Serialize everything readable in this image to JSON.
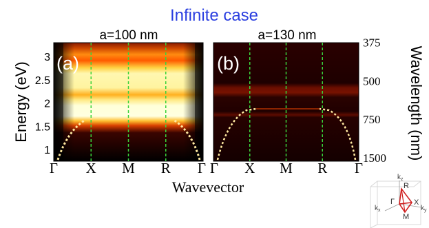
{
  "figure": {
    "title": "Infinite case",
    "title_color": "#2b3fe0",
    "xlabel": "Wavevector",
    "ylabel_left": "Energy (eV)",
    "ylabel_right": "Wavelength (nm)"
  },
  "chart_data": [
    {
      "type": "heatmap",
      "panel": "(a)",
      "subtitle": "a=100 nm",
      "x_ticks": [
        "Γ",
        "X",
        "M",
        "R",
        "Γ"
      ],
      "y_ticks": [
        "1",
        "1.5",
        "2",
        "2.5",
        "3"
      ],
      "ylim": [
        0.75,
        3.3
      ],
      "xlabel": "Wavevector",
      "ylabel": "Energy (eV)",
      "grid": "dashed green verticals at X, M, R",
      "colormap": "hot",
      "bands": [
        {
          "from_eV": 1.65,
          "to_eV": 2.1,
          "level": "high"
        },
        {
          "from_eV": 2.3,
          "to_eV": 2.85,
          "level": "high"
        },
        {
          "from_eV": 2.9,
          "to_eV": 3.3,
          "level": "medium"
        }
      ]
    },
    {
      "type": "heatmap",
      "panel": "(b)",
      "subtitle": "a=130 nm",
      "x_ticks": [
        "Γ",
        "X",
        "M",
        "R",
        "Γ"
      ],
      "y_ticks_right": [
        "375",
        "500",
        "750",
        "1500"
      ],
      "ylim": [
        0.75,
        3.3
      ],
      "xlabel": "Wavevector",
      "ylabel": "Wavelength (nm)",
      "grid": "dashed green verticals at X, M, R",
      "colormap": "hot",
      "bands": [
        {
          "from_eV": 2.45,
          "to_eV": 2.6,
          "level": "low"
        },
        {
          "from_eV": 1.85,
          "to_eV": 1.92,
          "level": "low"
        }
      ]
    }
  ],
  "inset": {
    "labels": [
      "k",
      "z",
      "R",
      "Γ",
      "X",
      "k",
      "x",
      "M",
      "k",
      "y"
    ]
  },
  "colors": {
    "grid": "#39d43c",
    "panel_bg": "#1a0000"
  }
}
